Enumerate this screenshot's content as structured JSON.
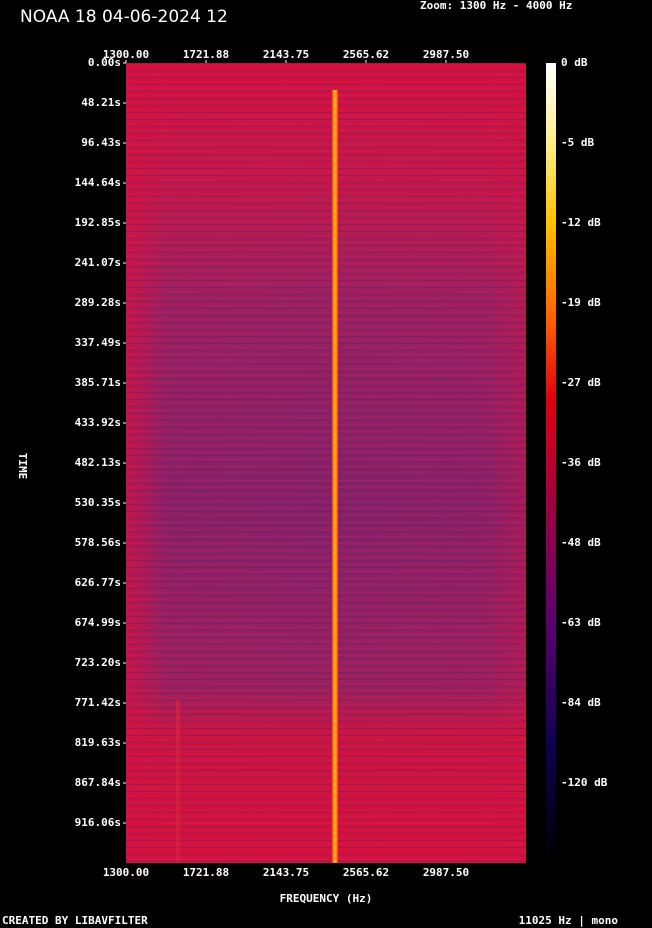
{
  "chart_data": {
    "type": "spectrogram",
    "title": "NOAA 18 04-06-2024 12",
    "subtitle": "Zoom: 1300 Hz - 4000 Hz",
    "x_label": "FREQUENCY (Hz)",
    "y_label": "TIME",
    "xlim": [
      1300,
      3409.375
    ],
    "xticks": [
      {
        "value": 1300,
        "label": "1300.00"
      },
      1721.88,
      2143.75,
      2565.62,
      {
        "value": 2987.5,
        "label": "2987.50"
      }
    ],
    "ylim": [
      0,
      964.27
    ],
    "yticks": [
      {
        "value": 0,
        "label": "0.00s"
      },
      {
        "value": 48.21,
        "label": "48.21s"
      },
      {
        "value": 96.43,
        "label": "96.43s"
      },
      {
        "value": 144.64,
        "label": "144.64s"
      },
      {
        "value": 192.85,
        "label": "192.85s"
      },
      {
        "value": 241.07,
        "label": "241.07s"
      },
      {
        "value": 289.28,
        "label": "289.28s"
      },
      {
        "value": 337.49,
        "label": "337.49s"
      },
      {
        "value": 385.71,
        "label": "385.71s"
      },
      {
        "value": 433.92,
        "label": "433.92s"
      },
      {
        "value": 482.13,
        "label": "482.13s"
      },
      {
        "value": 530.35,
        "label": "530.35s"
      },
      {
        "value": 578.56,
        "label": "578.56s"
      },
      {
        "value": 626.77,
        "label": "626.77s"
      },
      {
        "value": 674.99,
        "label": "674.99s"
      },
      {
        "value": 723.2,
        "label": "723.20s"
      },
      {
        "value": 771.42,
        "label": "771.42s"
      },
      {
        "value": 819.63,
        "label": "819.63s"
      },
      {
        "value": 867.84,
        "label": "867.84s"
      },
      {
        "value": 916.06,
        "label": "916.06s"
      }
    ],
    "colorbar_ticks": [
      {
        "value": 0,
        "label": "0 dB"
      },
      {
        "value": -5,
        "label": "-5 dB"
      },
      {
        "value": -12,
        "label": "-12 dB"
      },
      {
        "value": -19,
        "label": "-19 dB"
      },
      {
        "value": -27,
        "label": "-27 dB"
      },
      {
        "value": -36,
        "label": "-36 dB"
      },
      {
        "value": -48,
        "label": "-48 dB"
      },
      {
        "value": -63,
        "label": "-63 dB"
      },
      {
        "value": -84,
        "label": "-84 dB"
      },
      {
        "value": -120,
        "label": "-120 dB"
      }
    ],
    "footer_left": "CREATED BY LIBAVFILTER",
    "footer_right": "11025 Hz | mono"
  }
}
